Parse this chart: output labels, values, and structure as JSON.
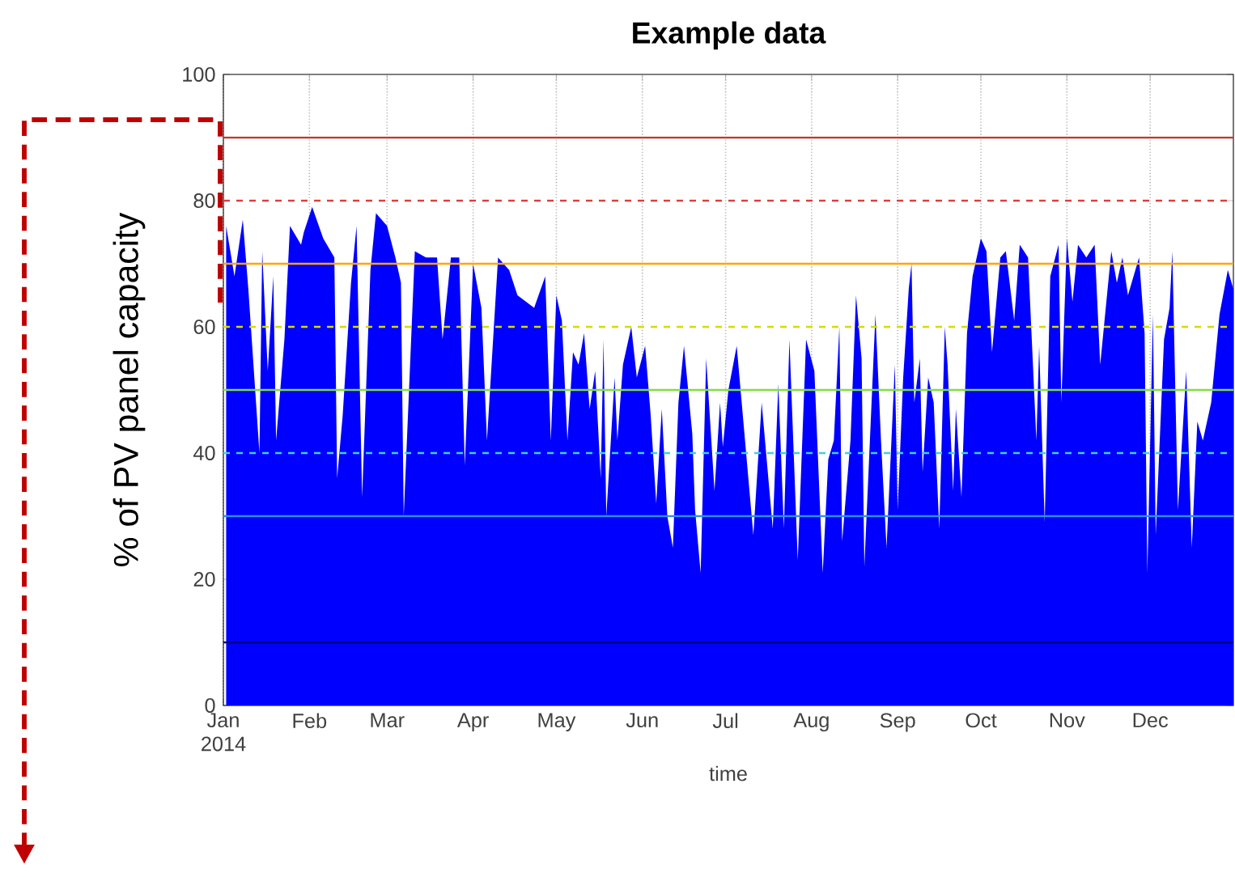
{
  "chart_data": {
    "type": "area",
    "title": "Example data",
    "xlabel": "time",
    "ylabel": "% of PV panel capacity",
    "x": [
      "2014-01-02",
      "2014-01-05",
      "2014-01-08",
      "2014-01-10",
      "2014-01-14",
      "2014-01-15",
      "2014-01-17",
      "2014-01-19",
      "2014-01-20",
      "2014-01-23",
      "2014-01-25",
      "2014-01-29",
      "2014-01-30",
      "2014-02-02",
      "2014-02-06",
      "2014-02-10",
      "2014-02-11",
      "2014-02-13",
      "2014-02-16",
      "2014-02-18",
      "2014-02-20",
      "2014-02-23",
      "2014-02-25",
      "2014-03-01",
      "2014-03-04",
      "2014-03-06",
      "2014-03-07",
      "2014-03-11",
      "2014-03-15",
      "2014-03-19",
      "2014-03-21",
      "2014-03-24",
      "2014-03-27",
      "2014-03-29",
      "2014-04-01",
      "2014-04-04",
      "2014-04-06",
      "2014-04-10",
      "2014-04-14",
      "2014-04-17",
      "2014-04-23",
      "2014-04-27",
      "2014-04-29",
      "2014-05-01",
      "2014-05-03",
      "2014-05-05",
      "2014-05-07",
      "2014-05-09",
      "2014-05-11",
      "2014-05-13",
      "2014-05-15",
      "2014-05-17",
      "2014-05-18",
      "2014-05-19",
      "2014-05-22",
      "2014-05-23",
      "2014-05-25",
      "2014-05-28",
      "2014-05-30",
      "2014-06-02",
      "2014-06-04",
      "2014-06-06",
      "2014-06-08",
      "2014-06-10",
      "2014-06-12",
      "2014-06-14",
      "2014-06-16",
      "2014-06-19",
      "2014-06-20",
      "2014-06-22",
      "2014-06-24",
      "2014-06-27",
      "2014-06-29",
      "2014-06-30",
      "2014-07-02",
      "2014-07-05",
      "2014-07-08",
      "2014-07-11",
      "2014-07-14",
      "2014-07-18",
      "2014-07-20",
      "2014-07-22",
      "2014-07-24",
      "2014-07-27",
      "2014-07-30",
      "2014-08-02",
      "2014-08-05",
      "2014-08-07",
      "2014-08-09",
      "2014-08-11",
      "2014-08-12",
      "2014-08-15",
      "2014-08-17",
      "2014-08-19",
      "2014-08-20",
      "2014-08-24",
      "2014-08-26",
      "2014-08-28",
      "2014-08-31",
      "2014-09-01",
      "2014-09-03",
      "2014-09-05",
      "2014-09-06",
      "2014-09-07",
      "2014-09-09",
      "2014-09-10",
      "2014-09-12",
      "2014-09-14",
      "2014-09-16",
      "2014-09-18",
      "2014-09-19",
      "2014-09-21",
      "2014-09-22",
      "2014-09-24",
      "2014-09-26",
      "2014-09-28",
      "2014-10-01",
      "2014-10-03",
      "2014-10-05",
      "2014-10-08",
      "2014-10-10",
      "2014-10-13",
      "2014-10-15",
      "2014-10-18",
      "2014-10-21",
      "2014-10-22",
      "2014-10-24",
      "2014-10-26",
      "2014-10-29",
      "2014-10-30",
      "2014-11-01",
      "2014-11-03",
      "2014-11-05",
      "2014-11-08",
      "2014-11-11",
      "2014-11-13",
      "2014-11-17",
      "2014-11-19",
      "2014-11-21",
      "2014-11-23",
      "2014-11-27",
      "2014-11-29",
      "2014-11-30",
      "2014-12-02",
      "2014-12-03",
      "2014-12-06",
      "2014-12-08",
      "2014-12-09",
      "2014-12-11",
      "2014-12-14",
      "2014-12-16",
      "2014-12-18",
      "2014-12-20",
      "2014-12-23",
      "2014-12-26",
      "2014-12-29",
      "2014-12-31"
    ],
    "values": [
      76,
      68,
      77,
      66,
      40,
      72,
      53,
      68,
      42,
      58,
      76,
      73,
      75,
      79,
      74,
      71,
      36,
      46,
      67,
      76,
      33,
      69,
      78,
      76,
      71,
      67,
      30,
      72,
      71,
      71,
      58,
      71,
      71,
      38,
      70,
      63,
      42,
      71,
      69,
      65,
      63,
      68,
      42,
      65,
      61,
      42,
      56,
      54,
      59,
      47,
      53,
      36,
      58,
      30,
      52,
      42,
      54,
      60,
      52,
      57,
      46,
      32,
      47,
      30,
      25,
      48,
      57,
      43,
      31,
      21,
      55,
      34,
      48,
      41,
      50,
      57,
      42,
      27,
      48,
      28,
      51,
      28,
      58,
      23,
      58,
      53,
      21,
      39,
      42,
      60,
      26,
      42,
      65,
      55,
      22,
      62,
      42,
      25,
      54,
      31,
      52,
      66,
      70,
      48,
      55,
      37,
      52,
      48,
      28,
      60,
      54,
      34,
      47,
      33,
      59,
      68,
      74,
      72,
      56,
      71,
      72,
      61,
      73,
      71,
      42,
      57,
      29,
      68,
      73,
      48,
      74,
      64,
      73,
      71,
      73,
      54,
      72,
      67,
      71,
      65,
      71,
      59,
      21,
      62,
      27,
      58,
      63,
      72,
      31,
      53,
      25,
      45,
      42,
      48,
      62,
      69,
      66
    ],
    "color": "#0000ff",
    "xlim": [
      "2014-01-01",
      "2014-12-31"
    ],
    "xticks": [
      {
        "value": "2014-01-01",
        "label": "Jan 2014"
      },
      {
        "value": "2014-02-01",
        "label": "Feb"
      },
      {
        "value": "2014-03-01",
        "label": "Mar"
      },
      {
        "value": "2014-04-01",
        "label": "Apr"
      },
      {
        "value": "2014-05-01",
        "label": "May"
      },
      {
        "value": "2014-06-01",
        "label": "Jun"
      },
      {
        "value": "2014-07-01",
        "label": "Jul"
      },
      {
        "value": "2014-08-01",
        "label": "Aug"
      },
      {
        "value": "2014-09-01",
        "label": "Sep"
      },
      {
        "value": "2014-10-01",
        "label": "Oct"
      },
      {
        "value": "2014-11-01",
        "label": "Nov"
      },
      {
        "value": "2014-12-01",
        "label": "Dec"
      }
    ],
    "ylim": [
      0,
      100
    ],
    "yticks": [
      0,
      20,
      40,
      60,
      80,
      100
    ],
    "grid": "x",
    "marker": "none",
    "ref_lines": [
      {
        "axis": "y",
        "value": 90,
        "color": "#c0392b",
        "line_style": "solid"
      },
      {
        "axis": "y",
        "value": 80,
        "color": "#e03c3c",
        "line_style": "dashed"
      },
      {
        "axis": "y",
        "value": 70,
        "color": "#ffa500",
        "line_style": "solid"
      },
      {
        "axis": "y",
        "value": 60,
        "color": "#d4dc00",
        "line_style": "dashed"
      },
      {
        "axis": "y",
        "value": 50,
        "color": "#80e040",
        "line_style": "solid"
      },
      {
        "axis": "y",
        "value": 40,
        "color": "#40d0e0",
        "line_style": "dashed"
      },
      {
        "axis": "y",
        "value": 30,
        "color": "#3090e0",
        "line_style": "solid"
      },
      {
        "axis": "y",
        "value": 10,
        "color": "#000080",
        "line_style": "solid"
      }
    ]
  }
}
